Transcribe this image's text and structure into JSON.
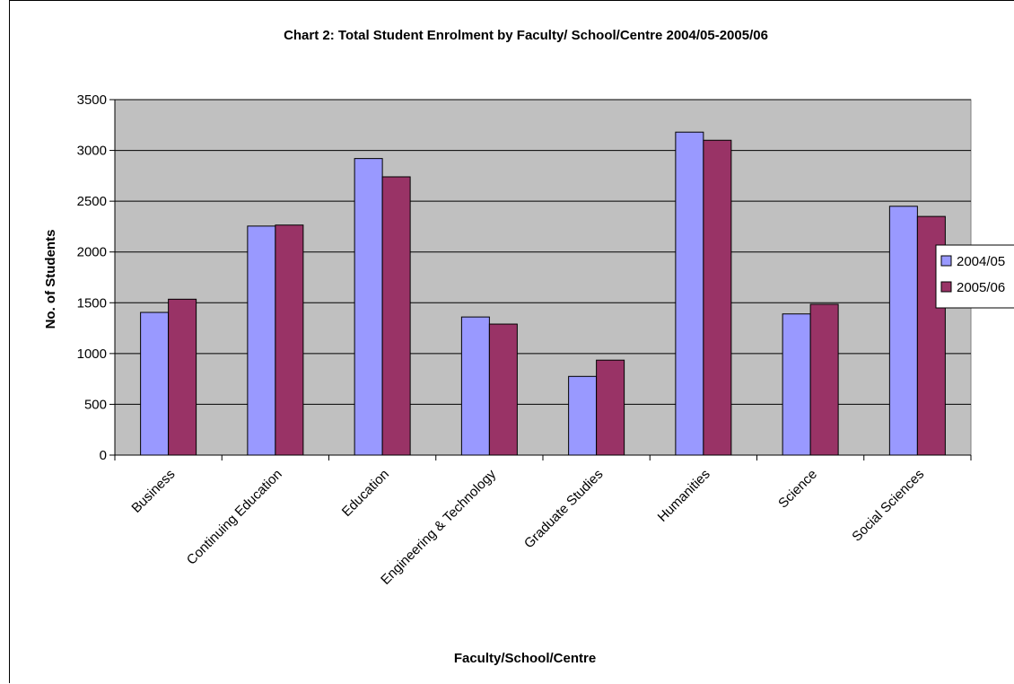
{
  "chart_data": {
    "type": "bar",
    "title": "Chart 2: Total Student Enrolment by Faculty/ School/Centre 2004/05-2005/06",
    "xlabel": "Faculty/School/Centre",
    "ylabel": "No. of Students",
    "ylim": [
      0,
      3500
    ],
    "ytick_step": 500,
    "grid": true,
    "legend_position": "right",
    "plot_background": "#c0c0c0",
    "categories": [
      "Business",
      "Continuing Education",
      "Education",
      "Engineering & Technology",
      "Graduate Studies",
      "Humanities",
      "Science",
      "Social Sciences"
    ],
    "series": [
      {
        "name": "2004/05",
        "color": "#9999ff",
        "values": [
          1405,
          2255,
          2920,
          1360,
          775,
          3180,
          1390,
          2450
        ]
      },
      {
        "name": "2005/06",
        "color": "#993366",
        "values": [
          1535,
          2265,
          2740,
          1290,
          935,
          3100,
          1485,
          2350
        ]
      }
    ]
  }
}
